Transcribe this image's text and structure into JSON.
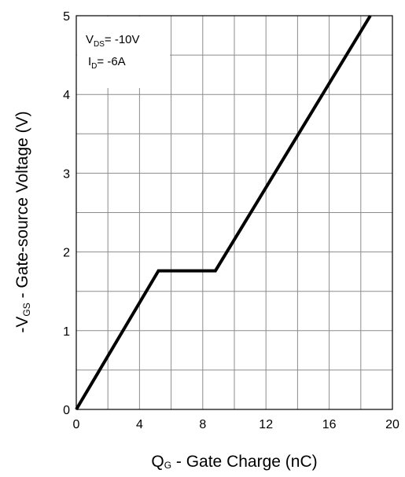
{
  "chart_data": {
    "type": "line",
    "x_axis": {
      "label_main": "Q",
      "label_sub": "G",
      "label_rest": " - Gate Charge (nC)",
      "ticks": [
        "0",
        "4",
        "8",
        "12",
        "16",
        "20"
      ],
      "range": [
        0,
        20
      ]
    },
    "y_axis": {
      "label_pre": "-V",
      "label_sub": "GS",
      "label_rest": " - Gate-source Voltage (V)",
      "ticks": [
        "0",
        "1",
        "2",
        "3",
        "4",
        "5"
      ],
      "range": [
        0,
        5
      ]
    },
    "grid": true,
    "annotation": {
      "line1_main": "V",
      "line1_sub": "DS",
      "line1_rest": "= -10V",
      "line2_main": "I",
      "line2_sub": "D",
      "line2_rest": "= -6A"
    },
    "series": [
      {
        "color": "#000000",
        "x": [
          0,
          5.2,
          8.8,
          18.6
        ],
        "y": [
          0,
          1.76,
          1.76,
          5.0
        ]
      }
    ]
  }
}
